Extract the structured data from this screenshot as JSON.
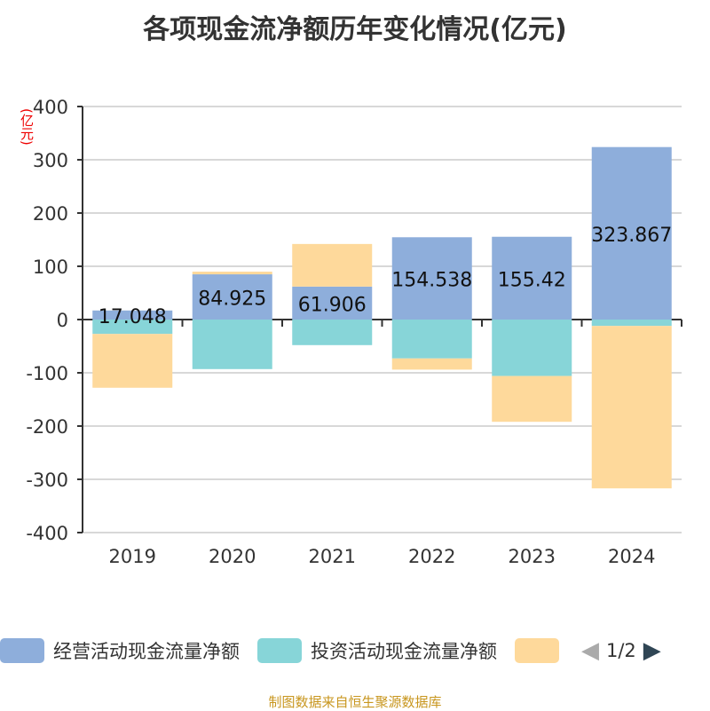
{
  "title": "各项现金流净额历年变化情况(亿元)",
  "source": "制图数据来自恒生聚源数据库",
  "legend_page": "1/2",
  "chart_data": {
    "type": "bar",
    "stacked": true,
    "ylabel": "(亿元)",
    "ylim": [
      -400,
      400
    ],
    "yticks": [
      400,
      300,
      200,
      100,
      0,
      -100,
      -200,
      -300,
      -400
    ],
    "categories": [
      "2019",
      "2020",
      "2021",
      "2022",
      "2023",
      "2024"
    ],
    "grid": true,
    "legend_placement": "bottom",
    "series": [
      {
        "name": "经营活动现金流量净额",
        "color": "#8eaedb",
        "values": [
          17.048,
          84.925,
          61.906,
          154.538,
          155.42,
          323.867
        ],
        "labels": [
          "17.048",
          "84.925",
          "61.906",
          "154.538",
          "155.42",
          "323.867"
        ]
      },
      {
        "name": "投资活动现金流量净额",
        "color": "#87d5d8",
        "values": [
          -27,
          -93,
          -48,
          -73,
          -106,
          -12
        ]
      },
      {
        "name": "",
        "color": "#fed99b",
        "values": [
          -101,
          5,
          80,
          -21,
          -86,
          -305
        ]
      }
    ]
  }
}
